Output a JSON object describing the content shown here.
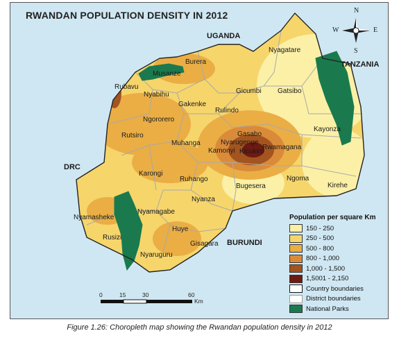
{
  "map": {
    "title": "RWANDAN POPULATION DENSITY IN 2012",
    "neighbors": [
      {
        "key": "uganda",
        "name": "UGANDA"
      },
      {
        "key": "tanzania",
        "name": "TANZANIA"
      },
      {
        "key": "drc",
        "name": "DRC"
      },
      {
        "key": "burundi",
        "name": "BURUNDI"
      }
    ],
    "districts": [
      {
        "key": "nyagatare",
        "name": "Nyagatare"
      },
      {
        "key": "burera",
        "name": "Burera"
      },
      {
        "key": "musanze",
        "name": "Musanze"
      },
      {
        "key": "rubavu",
        "name": "Rubavu"
      },
      {
        "key": "nyabihu",
        "name": "Nyabihu"
      },
      {
        "key": "gicumbi",
        "name": "Gicumbi"
      },
      {
        "key": "gatsibo",
        "name": "Gatsibo"
      },
      {
        "key": "gakenke",
        "name": "Gakenke"
      },
      {
        "key": "ngororero",
        "name": "Ngororero"
      },
      {
        "key": "rulindo",
        "name": "Rulindo"
      },
      {
        "key": "gasabo",
        "name": "Gasabo"
      },
      {
        "key": "kayonza",
        "name": "Kayonza"
      },
      {
        "key": "rutsiro",
        "name": "Rutsiro"
      },
      {
        "key": "muhanga",
        "name": "Muhanga"
      },
      {
        "key": "nyarugenge",
        "name": "Nyarugenge"
      },
      {
        "key": "kamonyi",
        "name": "Kamonyi"
      },
      {
        "key": "kicukiro",
        "name": "Kicukiro"
      },
      {
        "key": "rwamagana",
        "name": "Rwamagana"
      },
      {
        "key": "karongi",
        "name": "Karongi"
      },
      {
        "key": "ruhango",
        "name": "Ruhango"
      },
      {
        "key": "bugesera",
        "name": "Bugesera"
      },
      {
        "key": "ngoma",
        "name": "Ngoma"
      },
      {
        "key": "kirehe",
        "name": "Kirehe"
      },
      {
        "key": "nyanza",
        "name": "Nyanza"
      },
      {
        "key": "nyamasheke",
        "name": "Nyamasheke"
      },
      {
        "key": "nyamagabe",
        "name": "Nyamagabe"
      },
      {
        "key": "huye",
        "name": "Huye"
      },
      {
        "key": "rusizi",
        "name": "Rusizi"
      },
      {
        "key": "gisagara",
        "name": "Gisagara"
      },
      {
        "key": "nyaruguru",
        "name": "Nyaruguru"
      }
    ],
    "compass": {
      "n": "N",
      "s": "S",
      "e": "E",
      "w": "W"
    },
    "legend": {
      "title": "Population per square Km",
      "classes": [
        {
          "label": "150 - 250",
          "color": "#fbf0a6"
        },
        {
          "label": "250 - 500",
          "color": "#f6d56b"
        },
        {
          "label": "500 - 800",
          "color": "#eaae45"
        },
        {
          "label": "800 - 1,000",
          "color": "#d98b3a"
        },
        {
          "label": "1,000 - 1,500",
          "color": "#a4541f"
        },
        {
          "label": "1,5001 - 2,150",
          "color": "#6e1a12"
        }
      ],
      "boundaries": [
        {
          "label": "Country boundaries",
          "style": "country"
        },
        {
          "label": "District boundaries",
          "style": "district"
        },
        {
          "label": "National Parks",
          "style": "park",
          "color": "#1a7a4e"
        }
      ]
    },
    "scale_bar": {
      "ticks": [
        "0",
        "15",
        "30",
        "60"
      ],
      "unit": "Km"
    },
    "colors": {
      "water_background": "#cfe7f2",
      "country_border": "#222222",
      "district_border": "#a9a9a9",
      "park": "#1a7a4e"
    }
  },
  "caption": "Figure 1.26: Choropleth map showing the Rwandan population density in 2012"
}
